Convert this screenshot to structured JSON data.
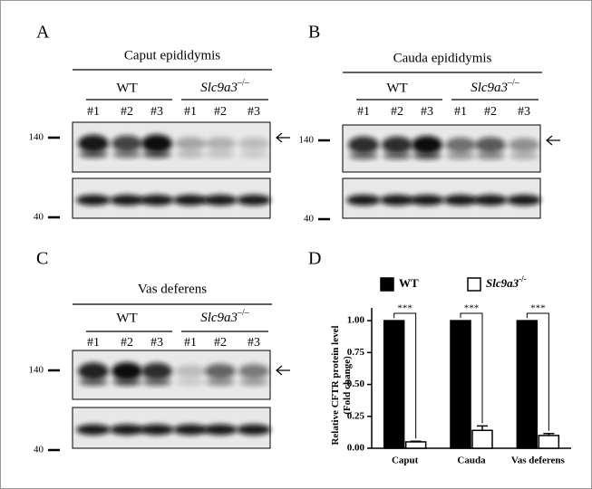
{
  "panels": [
    {
      "letter": "A",
      "title": "Caput epididymis",
      "wt": "WT",
      "gene": "Slc9a3",
      "genotype": "–/–",
      "lanes": [
        "#1",
        "#2",
        "#3",
        "#1",
        "#2",
        "#3"
      ],
      "markers": [
        "140",
        "40"
      ]
    },
    {
      "letter": "B",
      "title": "Cauda epididymis",
      "wt": "WT",
      "gene": "Slc9a3",
      "genotype": "–/–",
      "lanes": [
        "#1",
        "#2",
        "#3",
        "#1",
        "#2",
        "#3"
      ],
      "markers": [
        "140",
        "40"
      ]
    },
    {
      "letter": "C",
      "title": "Vas deferens",
      "wt": "WT",
      "gene": "Slc9a3",
      "genotype": "–/–",
      "lanes": [
        "#1",
        "#2",
        "#3",
        "#1",
        "#2",
        "#3"
      ],
      "markers": [
        "140",
        "40"
      ]
    }
  ],
  "chart_data": {
    "type": "bar",
    "letter": "D",
    "ylabel": [
      "Relative CFTR protein level",
      "(Fold change)"
    ],
    "categories": [
      "Caput",
      "Cauda",
      "Vas deferens"
    ],
    "series": [
      {
        "name": "WT",
        "color": "#000000",
        "values": [
          1.0,
          1.0,
          1.0
        ]
      },
      {
        "name": "Slc9a3",
        "name_superscript": "-/-",
        "color": "#ffffff",
        "values": [
          0.05,
          0.14,
          0.1
        ],
        "error": [
          0.005,
          0.035,
          0.015
        ]
      }
    ],
    "significance": [
      "***",
      "***",
      "***"
    ],
    "ylim": [
      0,
      1.1
    ],
    "yticks": [
      {
        "value": 0,
        "label": "0.00"
      },
      {
        "value": 0.25,
        "label": "0.25"
      },
      {
        "value": 0.5,
        "label": "0.50"
      },
      {
        "value": 0.75,
        "label": "0.75"
      },
      {
        "value": 1.0,
        "label": "1.00"
      }
    ]
  }
}
